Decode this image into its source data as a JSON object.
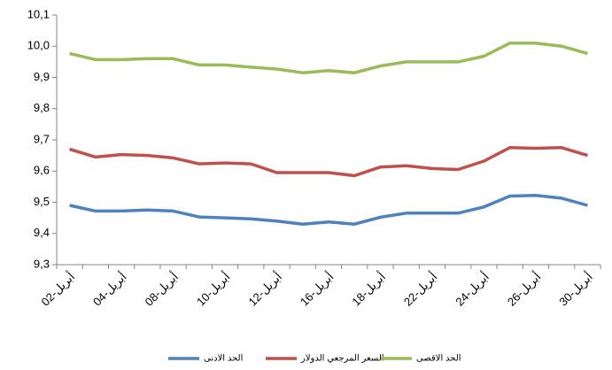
{
  "chart_data": {
    "type": "line",
    "categories": [
      "02-أبريل",
      null,
      "04-أبريل",
      null,
      "08-أبريل",
      null,
      "10-أبريل",
      null,
      "12-أبريل",
      null,
      "16-أبريل",
      null,
      "18-أبريل",
      null,
      "22-أبريل",
      null,
      "24-أبريل",
      null,
      "26-أبريل",
      null,
      "30-أبريل"
    ],
    "series": [
      {
        "name": "الحد الادنى",
        "color": "#4f81bd",
        "values": [
          9.49,
          9.472,
          9.472,
          9.475,
          9.472,
          9.453,
          9.45,
          9.447,
          9.44,
          9.43,
          9.437,
          9.43,
          9.452,
          9.465,
          9.465,
          9.465,
          9.485,
          9.52,
          9.522,
          9.513,
          9.49
        ]
      },
      {
        "name": "السعر المرجعي الدولار",
        "color": "#c0504d",
        "values": [
          9.67,
          9.645,
          9.653,
          9.65,
          9.642,
          9.623,
          9.626,
          9.623,
          9.595,
          9.595,
          9.595,
          9.585,
          9.613,
          9.617,
          9.608,
          9.605,
          9.632,
          9.675,
          9.673,
          9.675,
          9.65
        ]
      },
      {
        "name": "الحد الاقصى",
        "color": "#9bbb59",
        "values": [
          9.977,
          9.957,
          9.957,
          9.96,
          9.96,
          9.94,
          9.94,
          9.933,
          9.927,
          9.915,
          9.922,
          9.915,
          9.937,
          9.95,
          9.95,
          9.95,
          9.968,
          10.01,
          10.01,
          10.0,
          9.977
        ]
      }
    ],
    "ylim": [
      9.3,
      10.1
    ],
    "yticks": [
      {
        "value": 9.3,
        "label": "9,3"
      },
      {
        "value": 9.4,
        "label": "9,4"
      },
      {
        "value": 9.5,
        "label": "9,5"
      },
      {
        "value": 9.6,
        "label": "9,6"
      },
      {
        "value": 9.7,
        "label": "9,7"
      },
      {
        "value": 9.8,
        "label": "9,8"
      },
      {
        "value": 9.9,
        "label": "9,9"
      },
      {
        "value": 10.0,
        "label": "10,0"
      },
      {
        "value": 10.1,
        "label": "10,1"
      }
    ],
    "grid": false,
    "legend": "bottom"
  }
}
